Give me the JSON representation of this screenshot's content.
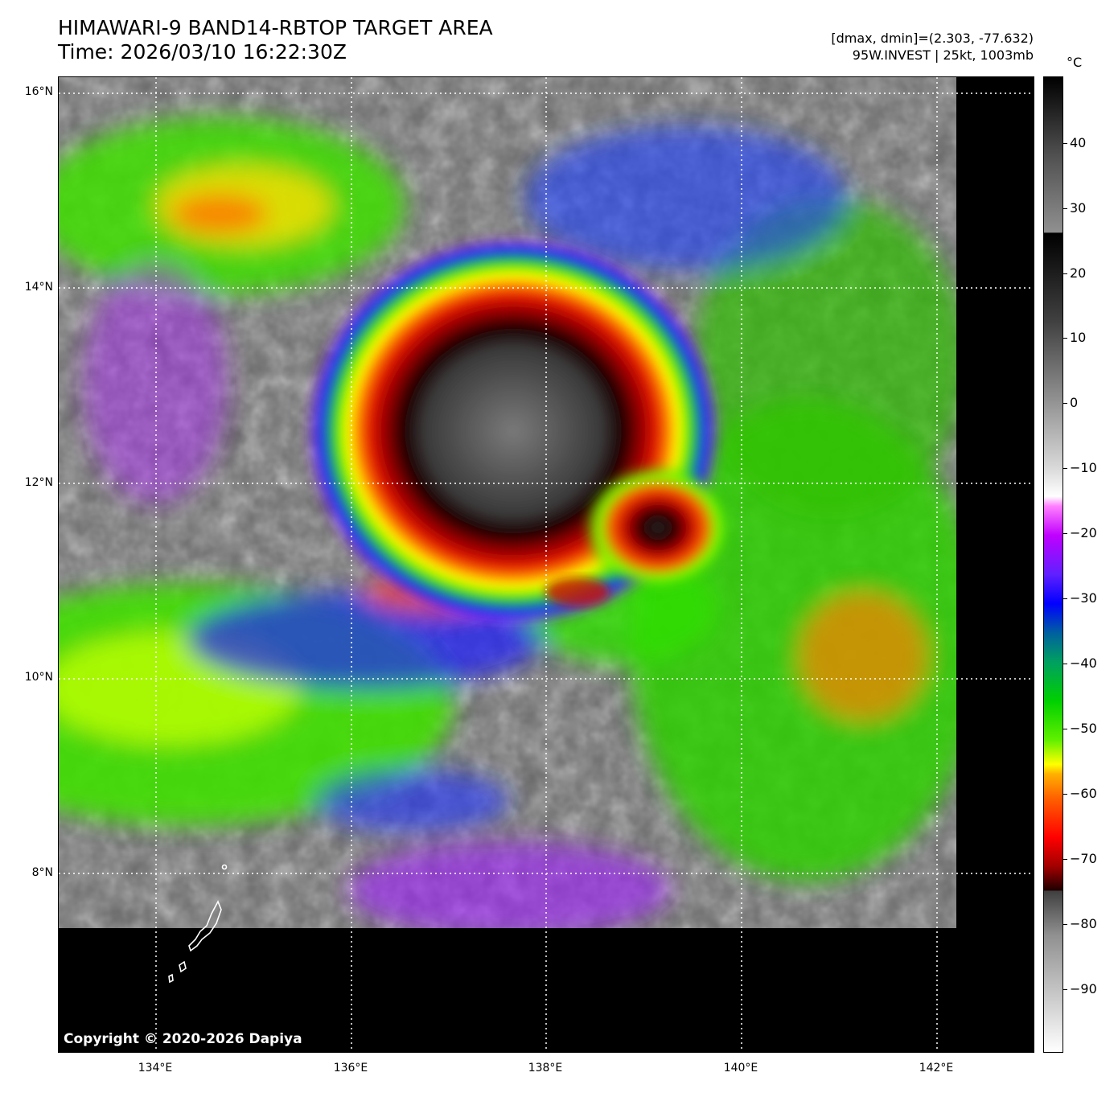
{
  "header": {
    "title_line1": "HIMAWARI-9 BAND14-RBTOP TARGET AREA",
    "title_line2": "Time: 2026/03/10 16:22:30Z",
    "meta_line1": "[dmax, dmin]=(2.303, -77.632)",
    "meta_line2": "95W.INVEST | 25kt, 1003mb"
  },
  "map": {
    "lat_labels": [
      "16°N",
      "14°N",
      "12°N",
      "10°N",
      "8°N"
    ],
    "lon_labels": [
      "134°E",
      "136°E",
      "138°E",
      "140°E",
      "142°E"
    ],
    "copyright": "Copyright © 2020-2026 Dapiya",
    "colors": {
      "background": "#000000",
      "gridline": "#ffffff",
      "coastline": "#ffffff"
    }
  },
  "colorbar": {
    "unit": "°C",
    "ticks": [
      "40",
      "30",
      "20",
      "10",
      "0",
      "−10",
      "−20",
      "−30",
      "−40",
      "−50",
      "−60",
      "−70",
      "−80",
      "−90"
    ]
  }
}
